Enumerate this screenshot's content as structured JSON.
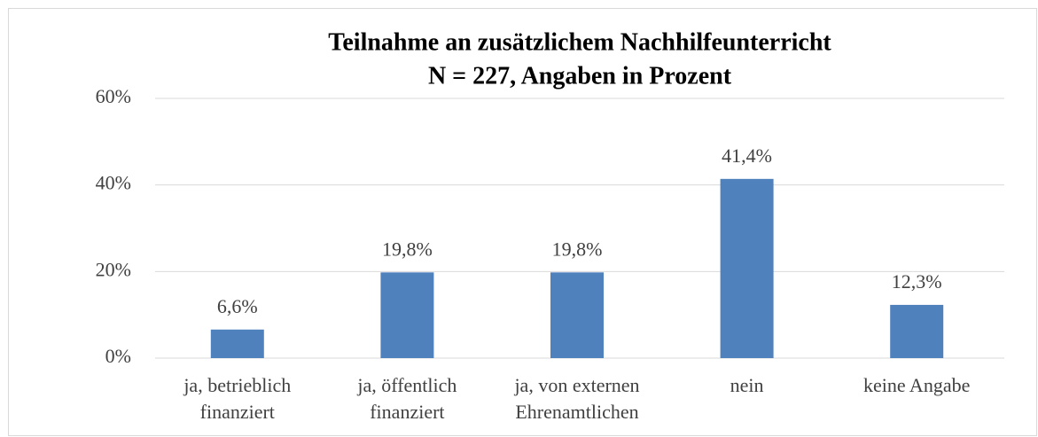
{
  "chart_data": {
    "type": "bar",
    "title": "Teilnahme an zusätzlichem Nachhilfeunterricht",
    "subtitle": "N = 227, Angaben in Prozent",
    "categories": [
      "ja, betrieblich finanziert",
      "ja, öffentlich finanziert",
      "ja, von externen Ehrenamtlichen",
      "nein",
      "keine Angabe"
    ],
    "values": [
      6.6,
      19.8,
      19.8,
      41.4,
      12.3
    ],
    "value_labels": [
      "6,6%",
      "19,8%",
      "19,8%",
      "41,4%",
      "12,3%"
    ],
    "color": "#4f81bd",
    "ylim": [
      0,
      60
    ],
    "yticks": [
      {
        "value": 0,
        "label": "0%"
      },
      {
        "value": 20,
        "label": "20%"
      },
      {
        "value": 40,
        "label": "40%"
      },
      {
        "value": 60,
        "label": "60%"
      }
    ],
    "grid": true
  }
}
